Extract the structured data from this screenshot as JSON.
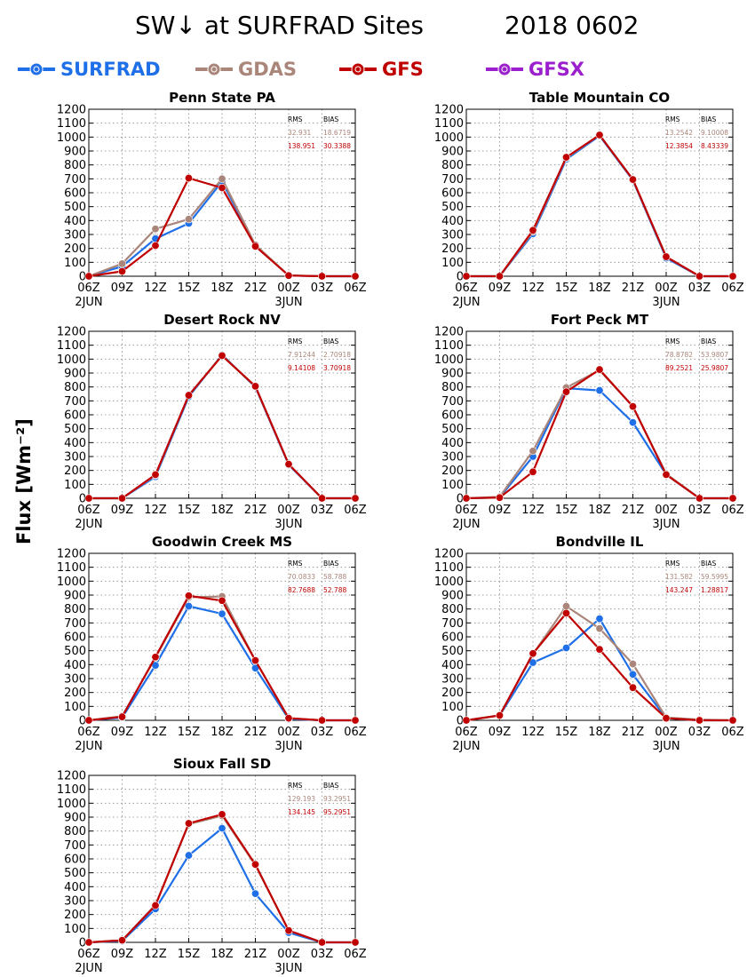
{
  "figure": {
    "title_left": "SW↓ at SURFRAD Sites",
    "title_right": "2018 0602",
    "ylabel": "Flux [Wm⁻²]"
  },
  "legend": [
    {
      "name": "SURFRAD",
      "color": "#1f6fe8"
    },
    {
      "name": "GDAS",
      "color": "#a9857a"
    },
    {
      "name": "GFS",
      "color": "#c00000"
    },
    {
      "name": "GFSX",
      "color": "#9b1fcc"
    }
  ],
  "chart_data": [
    {
      "type": "line",
      "title": "Penn State PA",
      "x": [
        "06Z",
        "09Z",
        "12Z",
        "15Z",
        "18Z",
        "21Z",
        "00Z",
        "03Z",
        "06Z"
      ],
      "xsub": [
        "2JUN",
        "",
        "",
        "",
        "",
        "",
        "3JUN",
        "",
        ""
      ],
      "ylim": [
        0,
        1200
      ],
      "yticks": [
        0,
        100,
        200,
        300,
        400,
        500,
        600,
        700,
        800,
        900,
        1000,
        1100,
        1200
      ],
      "grid": true,
      "stats": {
        "header": [
          "RMS",
          "BIAS"
        ],
        "gdas": [
          "32.931",
          "18.6719"
        ],
        "gfs": [
          "138.951",
          "30.3388"
        ]
      },
      "series": [
        {
          "name": "SURFRAD",
          "values": [
            0,
            70,
            270,
            380,
            680,
            220,
            5,
            0,
            0
          ]
        },
        {
          "name": "GDAS",
          "values": [
            0,
            90,
            340,
            410,
            700,
            225,
            5,
            0,
            0
          ]
        },
        {
          "name": "GFS",
          "values": [
            0,
            35,
            220,
            705,
            635,
            215,
            5,
            0,
            0
          ]
        }
      ]
    },
    {
      "type": "line",
      "title": "Table Mountain CO",
      "x": [
        "06Z",
        "09Z",
        "12Z",
        "15Z",
        "18Z",
        "21Z",
        "00Z",
        "03Z",
        "06Z"
      ],
      "xsub": [
        "2JUN",
        "",
        "",
        "",
        "",
        "",
        "3JUN",
        "",
        ""
      ],
      "ylim": [
        0,
        1200
      ],
      "yticks": [
        0,
        100,
        200,
        300,
        400,
        500,
        600,
        700,
        800,
        900,
        1000,
        1100,
        1200
      ],
      "grid": true,
      "stats": {
        "header": [
          "RMS",
          "BIAS"
        ],
        "gdas": [
          "13.2542",
          "9.10008"
        ],
        "gfs": [
          "12.3854",
          "8.43339"
        ]
      },
      "series": [
        {
          "name": "SURFRAD",
          "values": [
            0,
            0,
            305,
            840,
            1010,
            690,
            130,
            0,
            0
          ]
        },
        {
          "name": "GDAS",
          "values": [
            0,
            0,
            320,
            850,
            1015,
            695,
            140,
            0,
            0
          ]
        },
        {
          "name": "GFS",
          "values": [
            0,
            0,
            330,
            855,
            1015,
            695,
            140,
            0,
            0
          ]
        }
      ]
    },
    {
      "type": "line",
      "title": "Desert Rock NV",
      "x": [
        "06Z",
        "09Z",
        "12Z",
        "15Z",
        "18Z",
        "21Z",
        "00Z",
        "03Z",
        "06Z"
      ],
      "xsub": [
        "2JUN",
        "",
        "",
        "",
        "",
        "",
        "3JUN",
        "",
        ""
      ],
      "ylim": [
        0,
        1200
      ],
      "yticks": [
        0,
        100,
        200,
        300,
        400,
        500,
        600,
        700,
        800,
        900,
        1000,
        1100,
        1200
      ],
      "grid": true,
      "stats": {
        "header": [
          "RMS",
          "BIAS"
        ],
        "gdas": [
          "7.91244",
          "2.70918"
        ],
        "gfs": [
          "9.14108",
          "3.70918"
        ]
      },
      "series": [
        {
          "name": "SURFRAD",
          "values": [
            0,
            0,
            155,
            730,
            1030,
            800,
            240,
            0,
            0
          ]
        },
        {
          "name": "GDAS",
          "values": [
            0,
            0,
            165,
            740,
            1025,
            805,
            245,
            0,
            0
          ]
        },
        {
          "name": "GFS",
          "values": [
            0,
            0,
            170,
            740,
            1025,
            805,
            245,
            0,
            0
          ]
        }
      ]
    },
    {
      "type": "line",
      "title": "Fort Peck MT",
      "x": [
        "06Z",
        "09Z",
        "12Z",
        "15Z",
        "18Z",
        "21Z",
        "00Z",
        "03Z",
        "06Z"
      ],
      "xsub": [
        "2JUN",
        "",
        "",
        "",
        "",
        "",
        "3JUN",
        "",
        ""
      ],
      "ylim": [
        0,
        1200
      ],
      "yticks": [
        0,
        100,
        200,
        300,
        400,
        500,
        600,
        700,
        800,
        900,
        1000,
        1100,
        1200
      ],
      "grid": true,
      "stats": {
        "header": [
          "RMS",
          "BIAS"
        ],
        "gdas": [
          "78.8782",
          "53.9807"
        ],
        "gfs": [
          "89.2521",
          "25.9807"
        ]
      },
      "series": [
        {
          "name": "SURFRAD",
          "values": [
            0,
            5,
            300,
            790,
            775,
            545,
            170,
            0,
            0
          ]
        },
        {
          "name": "GDAS",
          "values": [
            0,
            10,
            340,
            795,
            920,
            660,
            175,
            0,
            0
          ]
        },
        {
          "name": "GFS",
          "values": [
            0,
            5,
            190,
            765,
            925,
            660,
            170,
            0,
            0
          ]
        }
      ]
    },
    {
      "type": "line",
      "title": "Goodwin Creek MS",
      "x": [
        "06Z",
        "09Z",
        "12Z",
        "15Z",
        "18Z",
        "21Z",
        "00Z",
        "03Z",
        "06Z"
      ],
      "xsub": [
        "2JUN",
        "",
        "",
        "",
        "",
        "",
        "3JUN",
        "",
        ""
      ],
      "ylim": [
        0,
        1200
      ],
      "yticks": [
        0,
        100,
        200,
        300,
        400,
        500,
        600,
        700,
        800,
        900,
        1000,
        1100,
        1200
      ],
      "grid": true,
      "stats": {
        "header": [
          "RMS",
          "BIAS"
        ],
        "gdas": [
          "70.0833",
          "58.788"
        ],
        "gfs": [
          "82.7688",
          "52.788"
        ]
      },
      "series": [
        {
          "name": "SURFRAD",
          "values": [
            0,
            20,
            395,
            820,
            765,
            375,
            10,
            0,
            0
          ]
        },
        {
          "name": "GDAS",
          "values": [
            0,
            30,
            450,
            885,
            890,
            430,
            15,
            0,
            0
          ]
        },
        {
          "name": "GFS",
          "values": [
            0,
            25,
            455,
            895,
            860,
            430,
            15,
            0,
            0
          ]
        }
      ]
    },
    {
      "type": "line",
      "title": "Bondville IL",
      "x": [
        "06Z",
        "09Z",
        "12Z",
        "15Z",
        "18Z",
        "21Z",
        "00Z",
        "03Z",
        "06Z"
      ],
      "xsub": [
        "2JUN",
        "",
        "",
        "",
        "",
        "",
        "3JUN",
        "",
        ""
      ],
      "ylim": [
        0,
        1200
      ],
      "yticks": [
        0,
        100,
        200,
        300,
        400,
        500,
        600,
        700,
        800,
        900,
        1000,
        1100,
        1200
      ],
      "grid": true,
      "stats": {
        "header": [
          "RMS",
          "BIAS"
        ],
        "gdas": [
          "131.582",
          "59.5995"
        ],
        "gfs": [
          "143.247",
          "1.28817"
        ]
      },
      "series": [
        {
          "name": "SURFRAD",
          "values": [
            0,
            35,
            415,
            520,
            730,
            330,
            15,
            0,
            0
          ]
        },
        {
          "name": "GDAS",
          "values": [
            0,
            35,
            475,
            820,
            660,
            405,
            20,
            5,
            0
          ]
        },
        {
          "name": "GFS",
          "values": [
            0,
            35,
            480,
            770,
            510,
            235,
            15,
            0,
            0
          ]
        }
      ]
    },
    {
      "type": "line",
      "title": "Sioux Fall SD",
      "x": [
        "06Z",
        "09Z",
        "12Z",
        "15Z",
        "18Z",
        "21Z",
        "00Z",
        "03Z",
        "06Z"
      ],
      "xsub": [
        "2JUN",
        "",
        "",
        "",
        "",
        "",
        "3JUN",
        "",
        ""
      ],
      "ylim": [
        0,
        1200
      ],
      "yticks": [
        0,
        100,
        200,
        300,
        400,
        500,
        600,
        700,
        800,
        900,
        1000,
        1100,
        1200
      ],
      "grid": true,
      "stats": {
        "header": [
          "RMS",
          "BIAS"
        ],
        "gdas": [
          "129.193",
          "93.2951"
        ],
        "gfs": [
          "134.145",
          "95.2951"
        ]
      },
      "series": [
        {
          "name": "SURFRAD",
          "values": [
            0,
            10,
            240,
            625,
            820,
            350,
            70,
            0,
            0
          ]
        },
        {
          "name": "GDAS",
          "values": [
            0,
            15,
            270,
            850,
            910,
            555,
            85,
            0,
            0
          ]
        },
        {
          "name": "GFS",
          "values": [
            0,
            15,
            265,
            855,
            920,
            560,
            85,
            0,
            0
          ]
        }
      ]
    }
  ]
}
